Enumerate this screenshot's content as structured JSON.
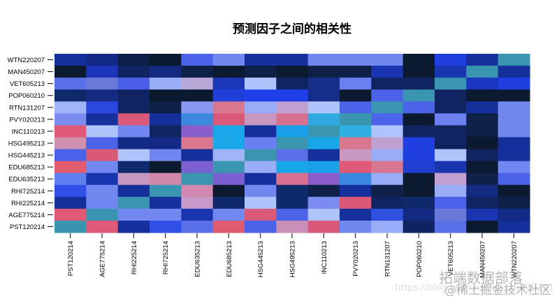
{
  "chart_data": {
    "type": "heatmap",
    "title": "预测因子之间的相关性",
    "xlabel": "",
    "ylabel": "",
    "legend": "none",
    "grid": false,
    "row_labels": [
      "WTN220207",
      "MAN450207",
      "VET605213",
      "POP060210",
      "RTN131207",
      "PVY020213",
      "INC110213",
      "HSG495213",
      "HSG445213",
      "EDU685213",
      "EDU635213",
      "RHI725214",
      "RHI225214",
      "AGE775214",
      "PST120214"
    ],
    "col_labels": [
      "PST120214",
      "AGE775214",
      "RHI225214",
      "RHI725214",
      "EDU635213",
      "EDU685213",
      "HSG445213",
      "HSG495213",
      "INC110213",
      "PVY020213",
      "RTN131207",
      "POP060210",
      "VET605213",
      "MAN450207",
      "WTN220207"
    ],
    "cell_colors": [
      [
        "#15309a",
        "#122a85",
        "#0e1f4a",
        "#0b1a2e",
        "#4a63e8",
        "#7088f0",
        "#15309a",
        "#15309a",
        "#7088f0",
        "#7088f0",
        "#7088f0",
        "#0b1a2e",
        "#1f3fe0",
        "#15309a",
        "#3a96b0"
      ],
      [
        "#0b1a2e",
        "#1a35b8",
        "#0f2460",
        "#132a80",
        "#0f2048",
        "#0b1a2e",
        "#0f2048",
        "#0b1a2e",
        "#0f2048",
        "#0f2048",
        "#1a35b0",
        "#0b1a2e",
        "#1a35b0",
        "#3a96b0",
        "#15309a"
      ],
      [
        "#5a70e8",
        "#6a78d8",
        "#4a5ee8",
        "#9aaef8",
        "#b8a8d8",
        "#1a35b8",
        "#b0c4fc",
        "#0f2460",
        "#142e8a",
        "#6a80f0",
        "#0f2460",
        "#0f2460",
        "#3a96b0",
        "#1a35c0",
        "#1f3fe0"
      ],
      [
        "#0f2a6a",
        "#132a80",
        "#0f2460",
        "#0b1a2e",
        "#0b1a2e",
        "#1f3fd8",
        "#1f3fe8",
        "#1f3fe8",
        "#142e8a",
        "#0b1a2e",
        "#4a63e8",
        "#3a96b0",
        "#0f2460",
        "#0b1a2e",
        "#0b1a2e"
      ],
      [
        "#a0b4f8",
        "#2a48e0",
        "#0f2460",
        "#0f2048",
        "#8898f0",
        "#d87890",
        "#98acf8",
        "#c0a0d0",
        "#b0c4fc",
        "#4a63e8",
        "#3a96b0",
        "#4a63e8",
        "#0f2460",
        "#15309a",
        "#7088f0"
      ],
      [
        "#7a8cf0",
        "#15309a",
        "#d85a78",
        "#15309a",
        "#3a88e0",
        "#d85a78",
        "#c898c0",
        "#d87090",
        "#30a8e0",
        "#3a96b0",
        "#4a63e8",
        "#0b1a2e",
        "#6a80f0",
        "#0f2048",
        "#7088f0"
      ],
      [
        "#e05878",
        "#b0c4fc",
        "#7088f0",
        "#0f2460",
        "#8a5ec8",
        "#18a8e8",
        "#15309a",
        "#18a0e8",
        "#3a96b0",
        "#30b0e0",
        "#b0c4fc",
        "#0f2460",
        "#0f2460",
        "#0f2048",
        "#7088f0"
      ],
      [
        "#d090b0",
        "#4a63e8",
        "#122a85",
        "#122a85",
        "#d87890",
        "#18a8e8",
        "#6a80f0",
        "#3a96b0",
        "#18a8e8",
        "#d87890",
        "#c0a0d0",
        "#1f3fe0",
        "#0f2460",
        "#0b1a2e",
        "#15309a"
      ],
      [
        "#4a63e8",
        "#d85a78",
        "#b0c4fc",
        "#7088f0",
        "#15309a",
        "#a0b4f8",
        "#3a96b0",
        "#5a70e8",
        "#15309a",
        "#c898c0",
        "#98acf8",
        "#1f3fe0",
        "#b0c4fc",
        "#0f2460",
        "#15309a"
      ],
      [
        "#e05a70",
        "#7088f0",
        "#0f2a6a",
        "#0b1a2e",
        "#7a60d0",
        "#3a96b0",
        "#9aaef8",
        "#18a8e8",
        "#18a0e8",
        "#e05a78",
        "#d87890",
        "#1f3fd0",
        "#1a35b0",
        "#0b1a2e",
        "#7088f0"
      ],
      [
        "#6080f0",
        "#1a35b0",
        "#c898c0",
        "#d088a8",
        "#3a96b0",
        "#7a60d0",
        "#15309a",
        "#d87090",
        "#8a5ec8",
        "#3a88e0",
        "#98acf8",
        "#0b1a2e",
        "#c0a0d0",
        "#0f2048",
        "#4a63e8"
      ],
      [
        "#3050e8",
        "#7088f0",
        "#15309a",
        "#3a96b0",
        "#d088b0",
        "#0b1a2e",
        "#7088f0",
        "#0f2a6a",
        "#0f2048",
        "#15309a",
        "#0f2048",
        "#0b1a2e",
        "#98acf8",
        "#132a80",
        "#0b1a2e"
      ],
      [
        "#15309a",
        "#7088f0",
        "#3a96b0",
        "#15309a",
        "#c898c8",
        "#0f2a6a",
        "#b0c4fc",
        "#0f2a6a",
        "#7a8cf0",
        "#d85a78",
        "#0f2460",
        "#0f2a6a",
        "#4a63e8",
        "#0f2460",
        "#0f2048"
      ],
      [
        "#e05a78",
        "#3a96b0",
        "#7088f0",
        "#7088f0",
        "#1a35b0",
        "#7088f0",
        "#d85a78",
        "#4a63e8",
        "#b0c4fc",
        "#15309a",
        "#3050e0",
        "#132a80",
        "#6a78d8",
        "#1a35b0",
        "#122a85"
      ],
      [
        "#3a96b0",
        "#e05a78",
        "#15309a",
        "#3050e8",
        "#5a70e8",
        "#e05a70",
        "#4a63e8",
        "#c890b8",
        "#d85a78",
        "#7088f0",
        "#9aaef8",
        "#0f2460",
        "#5a70e8",
        "#0b1a2e",
        "#15309a"
      ]
    ]
  },
  "watermark": {
    "line1": "拓端数据部落",
    "line2": "@稀土掘金技术社区",
    "url": "https://blog.csdn.net/qq_19600291"
  }
}
